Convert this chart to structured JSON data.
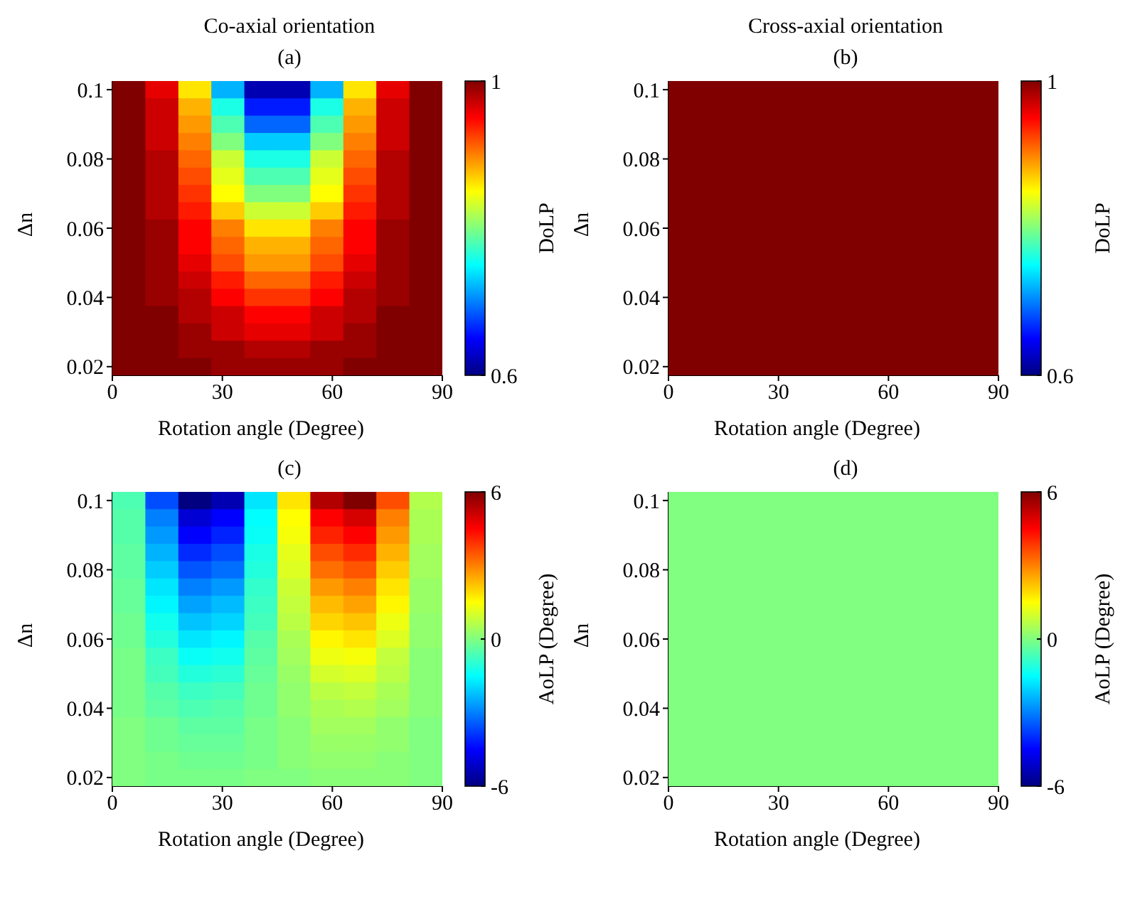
{
  "chart_data": [
    {
      "type": "heatmap",
      "title": "Co-axial orientation",
      "subtitle": "(a)",
      "xlabel": "Rotation angle (Degree)",
      "ylabel": "Δn",
      "clabel": "DoLP",
      "x": [
        4.5,
        13.5,
        22.5,
        31.5,
        40.5,
        49.5,
        58.5,
        67.5,
        76.5,
        85.5
      ],
      "y": [
        0.1,
        0.095,
        0.09,
        0.085,
        0.08,
        0.075,
        0.07,
        0.065,
        0.06,
        0.055,
        0.05,
        0.045,
        0.04,
        0.035,
        0.03,
        0.025,
        0.02
      ],
      "xlim": [
        0,
        90
      ],
      "ylim": [
        0.0175,
        0.1025
      ],
      "xticks": [
        0,
        30,
        60,
        90
      ],
      "yticks": [
        0.02,
        0.04,
        0.06,
        0.08,
        0.1
      ],
      "clim": [
        0.6,
        1
      ],
      "cticks": [
        0.6,
        1
      ],
      "cells": [
        [
          1,
          0.96,
          0.86,
          0.72,
          0.62,
          0.62,
          0.72,
          0.86,
          0.96,
          1
        ],
        [
          1,
          0.97,
          0.88,
          0.76,
          0.66,
          0.66,
          0.76,
          0.88,
          0.97,
          1
        ],
        [
          1,
          0.97,
          0.89,
          0.78,
          0.69,
          0.69,
          0.78,
          0.89,
          0.97,
          1
        ],
        [
          1,
          0.97,
          0.9,
          0.8,
          0.73,
          0.73,
          0.8,
          0.9,
          0.97,
          1
        ],
        [
          1,
          0.98,
          0.91,
          0.83,
          0.76,
          0.76,
          0.83,
          0.91,
          0.98,
          1
        ],
        [
          1,
          0.98,
          0.92,
          0.84,
          0.78,
          0.78,
          0.84,
          0.92,
          0.98,
          1
        ],
        [
          1,
          0.98,
          0.93,
          0.85,
          0.8,
          0.8,
          0.85,
          0.93,
          0.98,
          1
        ],
        [
          1,
          0.98,
          0.94,
          0.87,
          0.83,
          0.83,
          0.87,
          0.94,
          0.98,
          1
        ],
        [
          1,
          0.99,
          0.95,
          0.9,
          0.86,
          0.86,
          0.9,
          0.95,
          0.99,
          1
        ],
        [
          1,
          0.99,
          0.95,
          0.91,
          0.88,
          0.88,
          0.91,
          0.95,
          0.99,
          1
        ],
        [
          1,
          0.99,
          0.96,
          0.92,
          0.89,
          0.89,
          0.92,
          0.96,
          0.99,
          1
        ],
        [
          1,
          0.99,
          0.97,
          0.94,
          0.91,
          0.91,
          0.94,
          0.97,
          0.99,
          1
        ],
        [
          1,
          0.99,
          0.98,
          0.95,
          0.93,
          0.93,
          0.95,
          0.98,
          0.99,
          1
        ],
        [
          1,
          1,
          0.98,
          0.97,
          0.95,
          0.95,
          0.97,
          0.98,
          1,
          1
        ],
        [
          1,
          1,
          0.99,
          0.97,
          0.96,
          0.96,
          0.97,
          0.99,
          1,
          1
        ],
        [
          1,
          1,
          0.99,
          0.99,
          0.98,
          0.98,
          0.99,
          0.99,
          1,
          1
        ],
        [
          1,
          1,
          1,
          0.99,
          0.99,
          0.99,
          0.99,
          1,
          1,
          1
        ]
      ]
    },
    {
      "type": "heatmap",
      "title": "Cross-axial orientation",
      "subtitle": "(b)",
      "xlabel": "Rotation angle (Degree)",
      "ylabel": "Δn",
      "clabel": "DoLP",
      "x": [
        4.5,
        13.5,
        22.5,
        31.5,
        40.5,
        49.5,
        58.5,
        67.5,
        76.5,
        85.5
      ],
      "y": [
        0.1,
        0.095,
        0.09,
        0.085,
        0.08,
        0.075,
        0.07,
        0.065,
        0.06,
        0.055,
        0.05,
        0.045,
        0.04,
        0.035,
        0.03,
        0.025,
        0.02
      ],
      "xlim": [
        0,
        90
      ],
      "ylim": [
        0.0175,
        0.1025
      ],
      "xticks": [
        0,
        30,
        60,
        90
      ],
      "yticks": [
        0.02,
        0.04,
        0.06,
        0.08,
        0.1
      ],
      "clim": [
        0.6,
        1
      ],
      "cticks": [
        0.6,
        1
      ],
      "cells": [
        [
          1,
          1,
          1,
          1,
          1,
          1,
          1,
          1,
          1,
          1
        ],
        [
          1,
          1,
          1,
          1,
          1,
          1,
          1,
          1,
          1,
          1
        ],
        [
          1,
          1,
          1,
          1,
          1,
          1,
          1,
          1,
          1,
          1
        ],
        [
          1,
          1,
          1,
          1,
          1,
          1,
          1,
          1,
          1,
          1
        ],
        [
          1,
          1,
          1,
          1,
          1,
          1,
          1,
          1,
          1,
          1
        ],
        [
          1,
          1,
          1,
          1,
          1,
          1,
          1,
          1,
          1,
          1
        ],
        [
          1,
          1,
          1,
          1,
          1,
          1,
          1,
          1,
          1,
          1
        ],
        [
          1,
          1,
          1,
          1,
          1,
          1,
          1,
          1,
          1,
          1
        ],
        [
          1,
          1,
          1,
          1,
          1,
          1,
          1,
          1,
          1,
          1
        ],
        [
          1,
          1,
          1,
          1,
          1,
          1,
          1,
          1,
          1,
          1
        ],
        [
          1,
          1,
          1,
          1,
          1,
          1,
          1,
          1,
          1,
          1
        ],
        [
          1,
          1,
          1,
          1,
          1,
          1,
          1,
          1,
          1,
          1
        ],
        [
          1,
          1,
          1,
          1,
          1,
          1,
          1,
          1,
          1,
          1
        ],
        [
          1,
          1,
          1,
          1,
          1,
          1,
          1,
          1,
          1,
          1
        ],
        [
          1,
          1,
          1,
          1,
          1,
          1,
          1,
          1,
          1,
          1
        ],
        [
          1,
          1,
          1,
          1,
          1,
          1,
          1,
          1,
          1,
          1
        ],
        [
          1,
          1,
          1,
          1,
          1,
          1,
          1,
          1,
          1,
          1
        ]
      ]
    },
    {
      "type": "heatmap",
      "title": "(c)",
      "xlabel": "Rotation angle (Degree)",
      "ylabel": "Δn",
      "clabel": "AoLP (Degree)",
      "x": [
        4.5,
        13.5,
        22.5,
        31.5,
        40.5,
        49.5,
        58.5,
        67.5,
        76.5,
        85.5
      ],
      "y": [
        0.1,
        0.095,
        0.09,
        0.085,
        0.08,
        0.075,
        0.07,
        0.065,
        0.06,
        0.055,
        0.05,
        0.045,
        0.04,
        0.035,
        0.03,
        0.025,
        0.02
      ],
      "xlim": [
        0,
        90
      ],
      "ylim": [
        0.0175,
        0.1025
      ],
      "xticks": [
        0,
        30,
        60,
        90
      ],
      "yticks": [
        0.02,
        0.04,
        0.06,
        0.08,
        0.1
      ],
      "clim": [
        -6,
        6
      ],
      "cticks": [
        -6,
        0,
        6
      ],
      "cells": [
        [
          -0.6,
          -3.6,
          -6,
          -5.4,
          -1.8,
          1.8,
          5.4,
          6,
          3.6,
          0.6
        ],
        [
          -0.5,
          -3,
          -5,
          -4.5,
          -1.5,
          1.5,
          4.5,
          5,
          3,
          0.5
        ],
        [
          -0.5,
          -2.7,
          -4.5,
          -4.1,
          -1.4,
          1.4,
          4.1,
          4.5,
          2.7,
          0.5
        ],
        [
          -0.4,
          -2.4,
          -4,
          -3.6,
          -1.2,
          1.2,
          3.6,
          4,
          2.4,
          0.4
        ],
        [
          -0.4,
          -2.1,
          -3.5,
          -3.2,
          -1.1,
          1.1,
          3.2,
          3.5,
          2.1,
          0.4
        ],
        [
          -0.3,
          -1.8,
          -3,
          -2.7,
          -0.9,
          0.9,
          2.7,
          3,
          1.8,
          0.3
        ],
        [
          -0.3,
          -1.6,
          -2.6,
          -2.3,
          -0.8,
          0.8,
          2.3,
          2.6,
          1.6,
          0.3
        ],
        [
          -0.2,
          -1.3,
          -2.2,
          -2,
          -0.7,
          0.7,
          2,
          2.2,
          1.3,
          0.2
        ],
        [
          -0.2,
          -1.1,
          -1.8,
          -1.6,
          -0.5,
          0.5,
          1.6,
          1.8,
          1.1,
          0.2
        ],
        [
          -0.1,
          -0.8,
          -1.4,
          -1.3,
          -0.4,
          0.4,
          1.3,
          1.4,
          0.8,
          0.1
        ],
        [
          -0.1,
          -0.7,
          -1.1,
          -1,
          -0.3,
          0.3,
          1,
          1.1,
          0.7,
          0.1
        ],
        [
          -0.1,
          -0.5,
          -0.8,
          -0.7,
          -0.2,
          0.2,
          0.7,
          0.8,
          0.5,
          0.1
        ],
        [
          -0.1,
          -0.4,
          -0.6,
          -0.5,
          -0.2,
          0.2,
          0.5,
          0.6,
          0.4,
          0.1
        ],
        [
          0,
          -0.2,
          -0.4,
          -0.4,
          -0.1,
          0.1,
          0.4,
          0.4,
          0.2,
          0
        ],
        [
          0,
          -0.2,
          -0.3,
          -0.3,
          -0.1,
          0.1,
          0.3,
          0.3,
          0.2,
          0
        ],
        [
          0,
          -0.1,
          -0.2,
          -0.2,
          -0.1,
          0.1,
          0.2,
          0.2,
          0.1,
          0
        ],
        [
          0,
          -0.1,
          -0.1,
          -0.1,
          0,
          0,
          0.1,
          0.1,
          0.1,
          0
        ]
      ]
    },
    {
      "type": "heatmap",
      "title": "(d)",
      "xlabel": "Rotation angle (Degree)",
      "ylabel": "Δn",
      "clabel": "AoLP (Degree)",
      "x": [
        4.5,
        13.5,
        22.5,
        31.5,
        40.5,
        49.5,
        58.5,
        67.5,
        76.5,
        85.5
      ],
      "y": [
        0.1,
        0.095,
        0.09,
        0.085,
        0.08,
        0.075,
        0.07,
        0.065,
        0.06,
        0.055,
        0.05,
        0.045,
        0.04,
        0.035,
        0.03,
        0.025,
        0.02
      ],
      "xlim": [
        0,
        90
      ],
      "ylim": [
        0.0175,
        0.1025
      ],
      "xticks": [
        0,
        30,
        60,
        90
      ],
      "yticks": [
        0.02,
        0.04,
        0.06,
        0.08,
        0.1
      ],
      "clim": [
        -6,
        6
      ],
      "cticks": [
        -6,
        0,
        6
      ],
      "cells": [
        [
          0,
          0,
          0,
          0,
          0,
          0,
          0,
          0,
          0,
          0
        ],
        [
          0,
          0,
          0,
          0,
          0,
          0,
          0,
          0,
          0,
          0
        ],
        [
          0,
          0,
          0,
          0,
          0,
          0,
          0,
          0,
          0,
          0
        ],
        [
          0,
          0,
          0,
          0,
          0,
          0,
          0,
          0,
          0,
          0
        ],
        [
          0,
          0,
          0,
          0,
          0,
          0,
          0,
          0,
          0,
          0
        ],
        [
          0,
          0,
          0,
          0,
          0,
          0,
          0,
          0,
          0,
          0
        ],
        [
          0,
          0,
          0,
          0,
          0,
          0,
          0,
          0,
          0,
          0
        ],
        [
          0,
          0,
          0,
          0,
          0,
          0,
          0,
          0,
          0,
          0
        ],
        [
          0,
          0,
          0,
          0,
          0,
          0,
          0,
          0,
          0,
          0
        ],
        [
          0,
          0,
          0,
          0,
          0,
          0,
          0,
          0,
          0,
          0
        ],
        [
          0,
          0,
          0,
          0,
          0,
          0,
          0,
          0,
          0,
          0
        ],
        [
          0,
          0,
          0,
          0,
          0,
          0,
          0,
          0,
          0,
          0
        ],
        [
          0,
          0,
          0,
          0,
          0,
          0,
          0,
          0,
          0,
          0
        ],
        [
          0,
          0,
          0,
          0,
          0,
          0,
          0,
          0,
          0,
          0
        ],
        [
          0,
          0,
          0,
          0,
          0,
          0,
          0,
          0,
          0,
          0
        ],
        [
          0,
          0,
          0,
          0,
          0,
          0,
          0,
          0,
          0,
          0
        ],
        [
          0,
          0,
          0,
          0,
          0,
          0,
          0,
          0,
          0,
          0
        ]
      ]
    }
  ]
}
